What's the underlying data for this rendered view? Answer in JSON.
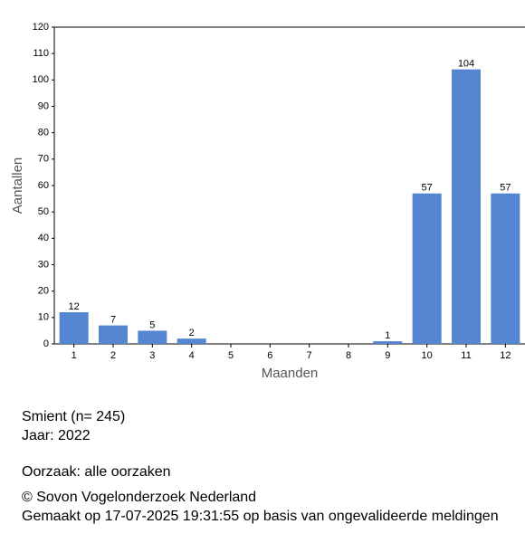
{
  "chart_data": {
    "type": "bar",
    "x_label": "Maanden",
    "y_label": "Aantallen",
    "categories": [
      "1",
      "2",
      "3",
      "4",
      "5",
      "6",
      "7",
      "8",
      "9",
      "10",
      "11",
      "12"
    ],
    "values": [
      12,
      7,
      5,
      2,
      0,
      0,
      0,
      0,
      1,
      57,
      104,
      57
    ],
    "color": "#5586d1",
    "ylim": [
      0,
      120
    ],
    "yticks": [
      0,
      10,
      20,
      30,
      40,
      50,
      60,
      70,
      80,
      90,
      100,
      110,
      120
    ],
    "grid": false
  },
  "footer": {
    "species": "Smient  (n= 245)",
    "year": "Jaar: 2022",
    "cause": "Oorzaak: alle oorzaken",
    "copyright": "© Sovon Vogelonderzoek Nederland",
    "made": "Gemaakt op 17-07-2025 19:31:55 op basis van ongevalideerde meldingen"
  }
}
